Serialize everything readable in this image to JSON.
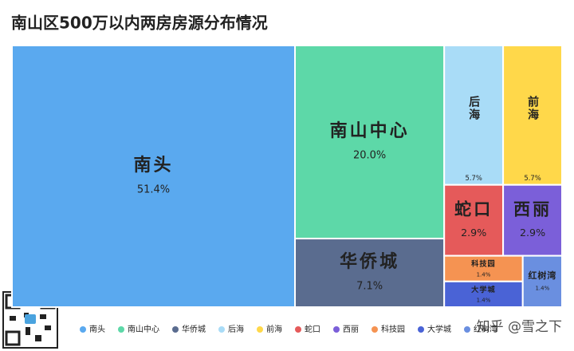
{
  "chart_data": {
    "type": "treemap",
    "title": "南山区500万以内两房房源分布情况",
    "categories": [
      "南头",
      "南山中心",
      "华侨城",
      "后海",
      "前海",
      "蛇口",
      "西丽",
      "科技园",
      "大学城",
      "红树湾"
    ],
    "values": [
      51.4,
      20.0,
      7.1,
      5.7,
      5.7,
      2.9,
      2.9,
      1.4,
      1.4,
      1.4
    ],
    "value_labels": [
      "51.4%",
      "20.0%",
      "7.1%",
      "5.7%",
      "5.7%",
      "2.9%",
      "2.9%",
      "1.4%",
      "1.4%",
      "1.4%"
    ],
    "colors": [
      "#5aa9ef",
      "#5dd8a8",
      "#5a6c8f",
      "#a9dcf7",
      "#ffd84a",
      "#e55a5a",
      "#7b5fd9",
      "#f59352",
      "#4a63d6",
      "#6a8fe0"
    ],
    "legend": "bottom",
    "watermark": "知乎 @雪之下"
  }
}
